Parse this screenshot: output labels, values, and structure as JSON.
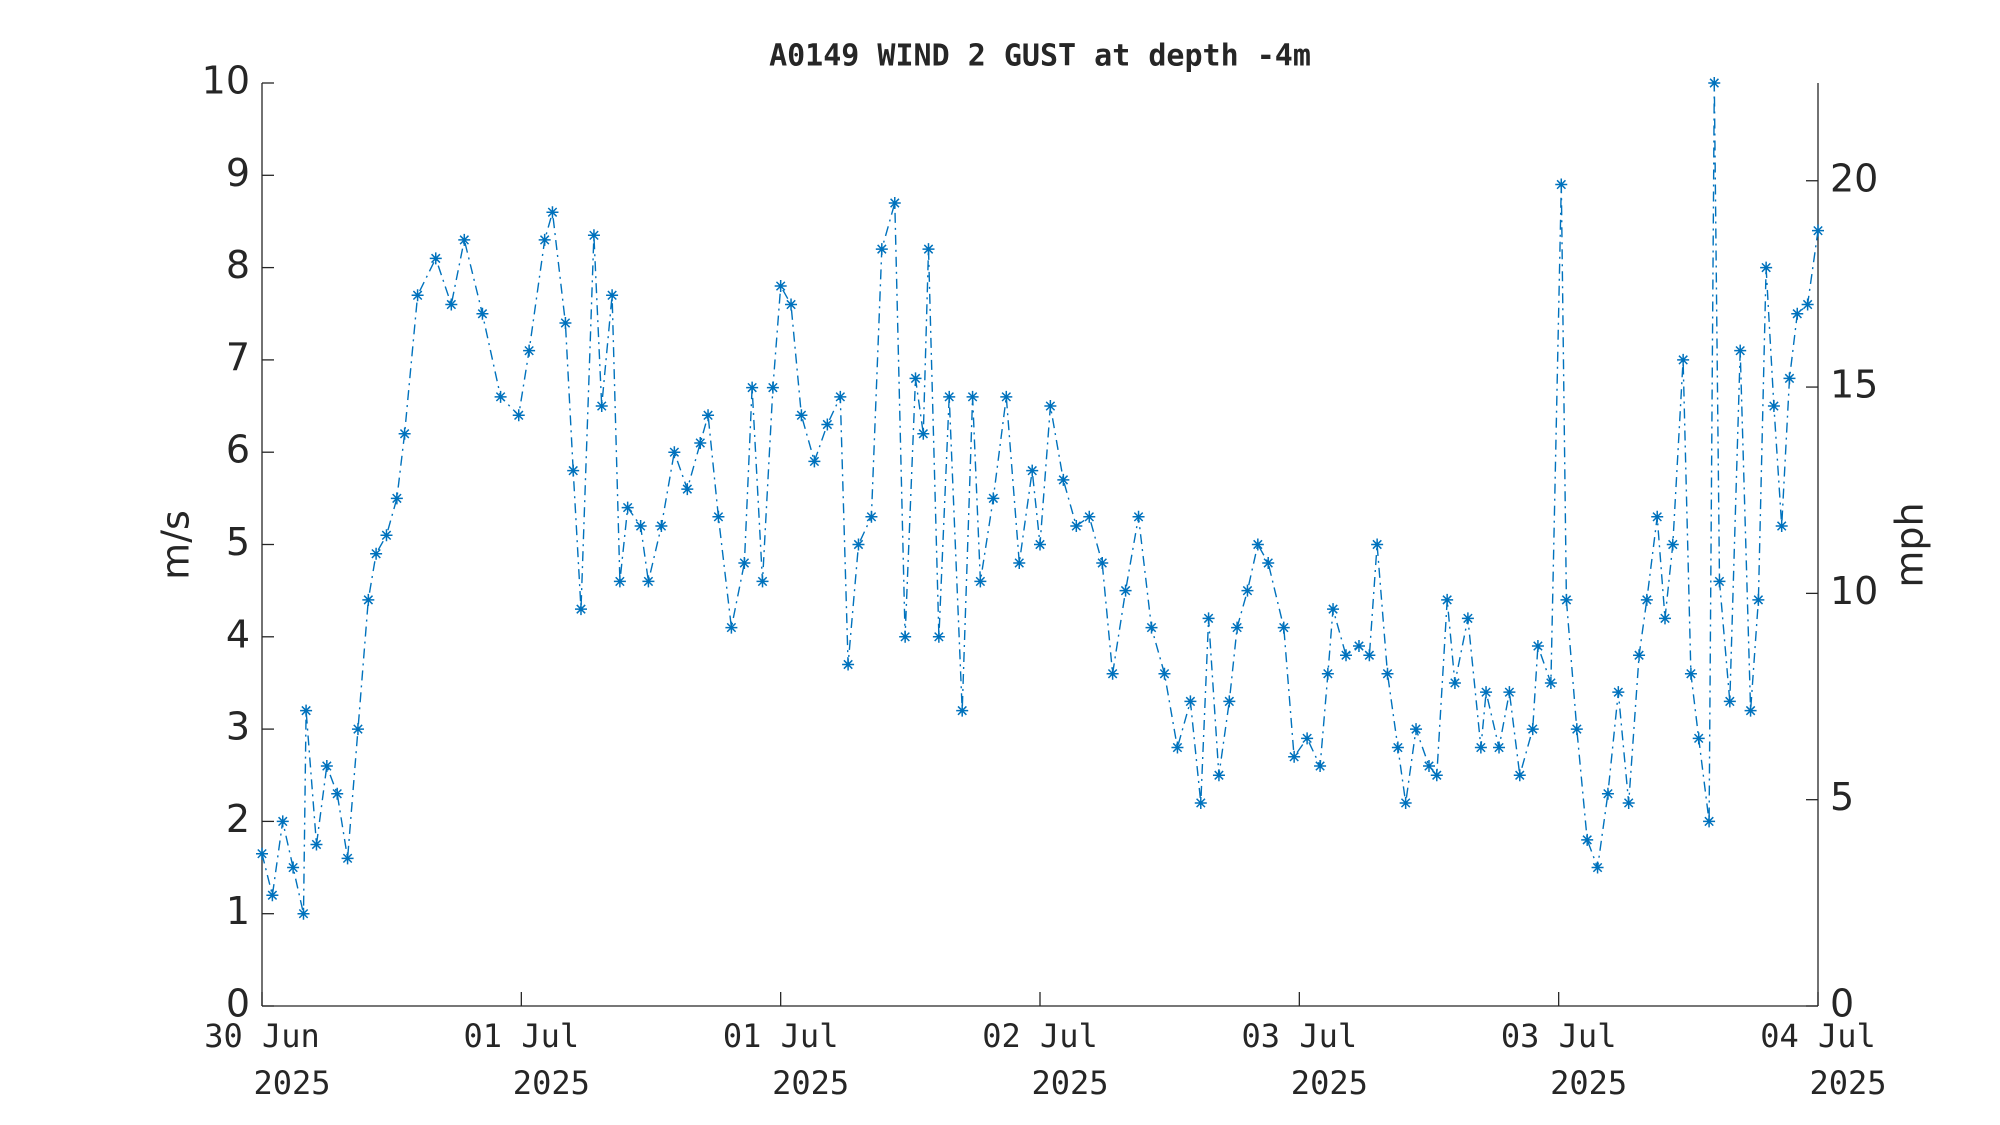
{
  "chart_data": {
    "type": "line",
    "title": "A0149 WIND 2 GUST at depth -4m",
    "y_label": "m/s",
    "y2_label": "mph",
    "color": "#0072bd",
    "line_style": "dash-dot",
    "marker": "asterisk",
    "xlim": [
      0,
      6
    ],
    "xticks": [
      {
        "value": 0,
        "label": [
          "30 Jun",
          "2025"
        ]
      },
      {
        "value": 1,
        "label": [
          "01 Jul",
          "2025"
        ]
      },
      {
        "value": 2,
        "label": [
          "01 Jul",
          "2025"
        ]
      },
      {
        "value": 3,
        "label": [
          "02 Jul",
          "2025"
        ]
      },
      {
        "value": 4,
        "label": [
          "03 Jul",
          "2025"
        ]
      },
      {
        "value": 5,
        "label": [
          "03 Jul",
          "2025"
        ]
      },
      {
        "value": 6,
        "label": [
          "04 Jul",
          "2025"
        ]
      }
    ],
    "ylim": [
      0,
      10
    ],
    "yticks": [
      0,
      1,
      2,
      3,
      4,
      5,
      6,
      7,
      8,
      9,
      10
    ],
    "y2lim": [
      0,
      22.369
    ],
    "y2ticks": [
      0,
      5,
      10,
      15,
      20
    ],
    "x": [
      0.0,
      0.04,
      0.08,
      0.12,
      0.16,
      0.17,
      0.21,
      0.25,
      0.29,
      0.33,
      0.37,
      0.41,
      0.44,
      0.48,
      0.52,
      0.55,
      0.6,
      0.67,
      0.73,
      0.78,
      0.85,
      0.92,
      0.99,
      1.03,
      1.09,
      1.12,
      1.17,
      1.2,
      1.23,
      1.28,
      1.31,
      1.35,
      1.38,
      1.41,
      1.46,
      1.49,
      1.54,
      1.59,
      1.64,
      1.69,
      1.72,
      1.76,
      1.81,
      1.86,
      1.89,
      1.93,
      1.97,
      2.0,
      2.04,
      2.08,
      2.13,
      2.18,
      2.23,
      2.26,
      2.3,
      2.35,
      2.39,
      2.44,
      2.48,
      2.52,
      2.55,
      2.57,
      2.61,
      2.65,
      2.7,
      2.74,
      2.77,
      2.82,
      2.87,
      2.92,
      2.97,
      3.0,
      3.04,
      3.09,
      3.14,
      3.19,
      3.24,
      3.28,
      3.33,
      3.38,
      3.43,
      3.48,
      3.53,
      3.58,
      3.62,
      3.65,
      3.69,
      3.73,
      3.76,
      3.8,
      3.84,
      3.88,
      3.94,
      3.98,
      4.03,
      4.08,
      4.11,
      4.13,
      4.18,
      4.23,
      4.27,
      4.3,
      4.34,
      4.38,
      4.41,
      4.45,
      4.5,
      4.53,
      4.57,
      4.6,
      4.65,
      4.7,
      4.72,
      4.77,
      4.81,
      4.85,
      4.9,
      4.92,
      4.97,
      5.01,
      5.03,
      5.07,
      5.11,
      5.15,
      5.19,
      5.23,
      5.27,
      5.31,
      5.34,
      5.38,
      5.41,
      5.44,
      5.48,
      5.51,
      5.54,
      5.58,
      5.6,
      5.62,
      5.66,
      5.7,
      5.74,
      5.77,
      5.8,
      5.83,
      5.86,
      5.89,
      5.92,
      5.96,
      6.0
    ],
    "values": [
      1.65,
      1.2,
      2.0,
      1.5,
      1.0,
      3.2,
      1.75,
      2.6,
      2.3,
      1.6,
      3.0,
      4.4,
      4.9,
      5.1,
      5.5,
      6.2,
      7.7,
      8.1,
      7.6,
      8.3,
      7.5,
      6.6,
      6.4,
      7.1,
      8.3,
      8.6,
      7.4,
      5.8,
      4.3,
      8.35,
      6.5,
      7.7,
      4.6,
      5.4,
      5.2,
      4.6,
      5.2,
      6.0,
      5.6,
      6.1,
      6.4,
      5.3,
      4.1,
      4.8,
      6.7,
      4.6,
      6.7,
      7.8,
      7.6,
      6.4,
      5.9,
      6.3,
      6.6,
      3.7,
      5.0,
      5.3,
      8.2,
      8.7,
      4.0,
      6.8,
      6.2,
      8.2,
      4.0,
      6.6,
      3.2,
      6.6,
      4.6,
      5.5,
      6.6,
      4.8,
      5.8,
      5.0,
      6.5,
      5.7,
      5.2,
      5.3,
      4.8,
      3.6,
      4.5,
      5.3,
      4.1,
      3.6,
      2.8,
      3.3,
      2.2,
      4.2,
      2.5,
      3.3,
      4.1,
      4.5,
      5.0,
      4.8,
      4.1,
      2.7,
      2.9,
      2.6,
      3.6,
      4.3,
      3.8,
      3.9,
      3.8,
      5.0,
      3.6,
      2.8,
      2.2,
      3.0,
      2.6,
      2.5,
      4.4,
      3.5,
      4.2,
      2.8,
      3.4,
      2.8,
      3.4,
      2.5,
      3.0,
      3.9,
      3.5,
      8.9,
      4.4,
      3.0,
      1.8,
      1.5,
      2.3,
      3.4,
      2.2,
      3.8,
      4.4,
      5.3,
      4.2,
      5.0,
      7.0,
      3.6,
      2.9,
      2.0,
      10.0,
      4.6,
      3.3,
      7.1,
      3.2,
      4.4,
      8.0,
      6.5,
      5.2,
      6.8,
      7.5,
      7.6,
      8.4
    ]
  }
}
